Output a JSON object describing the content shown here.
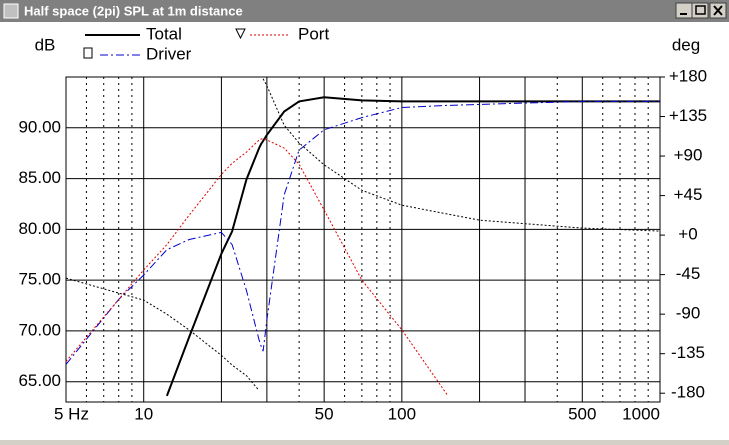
{
  "window_title": "Half space (2pi) SPL at 1m distance",
  "chart_data": {
    "type": "line",
    "ylabel": "dB",
    "y2label": "deg",
    "x": [
      5,
      8,
      10,
      12.3,
      15,
      20,
      22,
      25,
      28,
      28.5,
      29,
      30,
      35,
      40,
      50,
      70,
      100,
      150,
      200,
      500,
      1000
    ],
    "series": [
      {
        "name": "Total",
        "color": "#000000",
        "values": [
          null,
          null,
          null,
          63.6,
          69.4,
          77.6,
          79.8,
          84.9,
          88,
          88.4,
          88.7,
          89.3,
          91.6,
          92.6,
          93.0,
          92.7,
          92.6,
          92.6,
          92.6,
          92.6,
          92.6
        ]
      },
      {
        "name": "Driver",
        "color": "#0000cc",
        "values": [
          66.7,
          73.1,
          75.5,
          78,
          79,
          79.7,
          78.5,
          74,
          69.1,
          68.5,
          68,
          71.1,
          83.4,
          87.8,
          89.8,
          91,
          92,
          92.2,
          92.3,
          92.6,
          92.6
        ]
      },
      {
        "name": "Port",
        "color": "#e00000",
        "values": [
          67,
          73.1,
          76,
          78.5,
          81.4,
          85.4,
          86.5,
          87.6,
          88.8,
          88.9,
          88.9,
          88.8,
          88,
          86.4,
          81.9,
          75,
          70.1,
          63.7,
          null,
          null,
          null
        ]
      },
      {
        "color": "#000000",
        "axis": "y2",
        "values": [
          -49,
          -66,
          -74,
          -90,
          -108,
          -137,
          -148,
          -160,
          -177,
          null,
          178,
          170,
          125,
          105,
          80,
          51,
          34,
          24,
          17,
          8,
          4.6
        ]
      }
    ],
    "xscale": "log",
    "xlim": [
      5,
      1000
    ],
    "xticks": [
      {
        "value": 5,
        "label": "5 Hz"
      },
      10,
      50,
      100,
      500,
      1000
    ],
    "ylim": [
      63,
      95
    ],
    "yticks": [
      {
        "value": 65,
        "label": "65.00"
      },
      {
        "value": 70,
        "label": "70.00"
      },
      {
        "value": 75,
        "label": "75.00"
      },
      {
        "value": 80,
        "label": "80.00"
      },
      {
        "value": 85,
        "label": "85.00"
      },
      {
        "value": 90,
        "label": "90.00"
      }
    ],
    "y2lim": [
      -190,
      180
    ],
    "y2ticks": [
      {
        "value": 180,
        "label": "+180"
      },
      {
        "value": 135,
        "label": "+135"
      },
      {
        "value": 90,
        "label": "+90"
      },
      {
        "value": 45,
        "label": "+45"
      },
      {
        "value": 0,
        "label": "+0"
      },
      -45,
      -90,
      -135,
      -180
    ],
    "grid": true
  }
}
